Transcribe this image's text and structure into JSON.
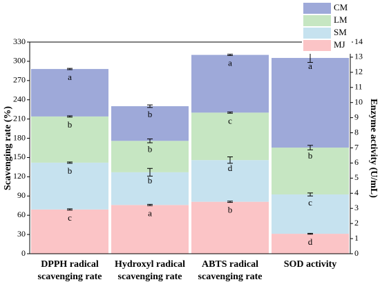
{
  "chart_data": {
    "type": "stacked_bar",
    "categories": [
      [
        "DPPH radical",
        "scavenging rate"
      ],
      [
        "Hydroxyl radical",
        "scavenging rate"
      ],
      [
        "ABTS radical",
        "scavenging rate"
      ],
      [
        "SOD activity"
      ]
    ],
    "category_axis": [
      "y",
      "y",
      "y",
      "y2"
    ],
    "ylabel": "Scavenging rate (%)",
    "y2label": "Enzyme activity (U/mL)",
    "ylim": [
      0,
      330
    ],
    "yticks": [
      0,
      30,
      60,
      90,
      120,
      150,
      180,
      210,
      240,
      270,
      300,
      330
    ],
    "y2lim": [
      0,
      14
    ],
    "y2ticks": [
      0,
      1,
      2,
      3,
      4,
      5,
      6,
      7,
      8,
      9,
      10,
      11,
      12,
      13,
      14
    ],
    "legend": "upper right",
    "series": [
      {
        "name": "MJ",
        "color": "#fbc4c6",
        "values": [
          69,
          76,
          81,
          1.32
        ],
        "errors": [
          1,
          1,
          1,
          0.03
        ],
        "labels": [
          "c",
          "a",
          "b",
          "d"
        ]
      },
      {
        "name": "SM",
        "color": "#c6e2ef",
        "values": [
          73,
          51,
          65,
          2.6
        ],
        "errors": [
          1,
          6,
          5,
          0.1
        ],
        "labels": [
          "b",
          "b",
          "d",
          "c"
        ]
      },
      {
        "name": "LM",
        "color": "#c6e6c2",
        "values": [
          72,
          49,
          74,
          3.1
        ],
        "errors": [
          1,
          3,
          1,
          0.15
        ],
        "labels": [
          "b",
          "b",
          "c",
          "b"
        ]
      },
      {
        "name": "CM",
        "color": "#9ea9d9",
        "values": [
          74,
          54,
          90,
          5.93
        ],
        "errors": [
          1,
          2,
          1,
          0.3
        ],
        "labels": [
          "a",
          "b",
          "a",
          "a"
        ]
      }
    ]
  }
}
